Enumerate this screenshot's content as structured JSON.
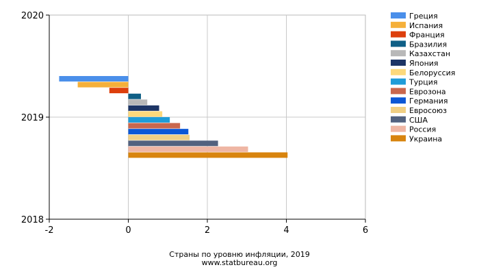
{
  "chart_data": {
    "type": "bar",
    "orientation": "horizontal",
    "subtitle": "Страны по уровню инфляции, 2019",
    "source": "www.statbureau.org",
    "xlim": [
      -2,
      6
    ],
    "x_ticks": [
      "-2",
      "0",
      "2",
      "4",
      "6"
    ],
    "x_tick_values": [
      -2,
      0,
      2,
      4,
      6
    ],
    "y_ticks": [
      "2020",
      "2019",
      "2018"
    ],
    "y_tick_values": [
      2020,
      2019,
      2018
    ],
    "ylim": [
      2018,
      2020
    ],
    "category": 2019,
    "grid": true,
    "legend_position": "right",
    "series": [
      {
        "name": "Греция",
        "value": -1.75,
        "color": "#4a8fea"
      },
      {
        "name": "Испания",
        "value": -1.28,
        "color": "#f5b03a"
      },
      {
        "name": "Франция",
        "value": -0.48,
        "color": "#dd3f0c"
      },
      {
        "name": "Бразилия",
        "value": 0.32,
        "color": "#0f5f86"
      },
      {
        "name": "Казахстан",
        "value": 0.48,
        "color": "#b8b8b8"
      },
      {
        "name": "Япония",
        "value": 0.78,
        "color": "#1d3566"
      },
      {
        "name": "Белоруссия",
        "value": 0.86,
        "color": "#fcd97c"
      },
      {
        "name": "Турция",
        "value": 1.05,
        "color": "#1f9cd8"
      },
      {
        "name": "Еврозона",
        "value": 1.31,
        "color": "#c9674d"
      },
      {
        "name": "Германия",
        "value": 1.52,
        "color": "#0c57d6"
      },
      {
        "name": "Евросоюз",
        "value": 1.55,
        "color": "#f0cf84"
      },
      {
        "name": "США",
        "value": 2.27,
        "color": "#52627f"
      },
      {
        "name": "Россия",
        "value": 3.03,
        "color": "#efb6a4"
      },
      {
        "name": "Украина",
        "value": 4.03,
        "color": "#d8840e"
      }
    ]
  }
}
